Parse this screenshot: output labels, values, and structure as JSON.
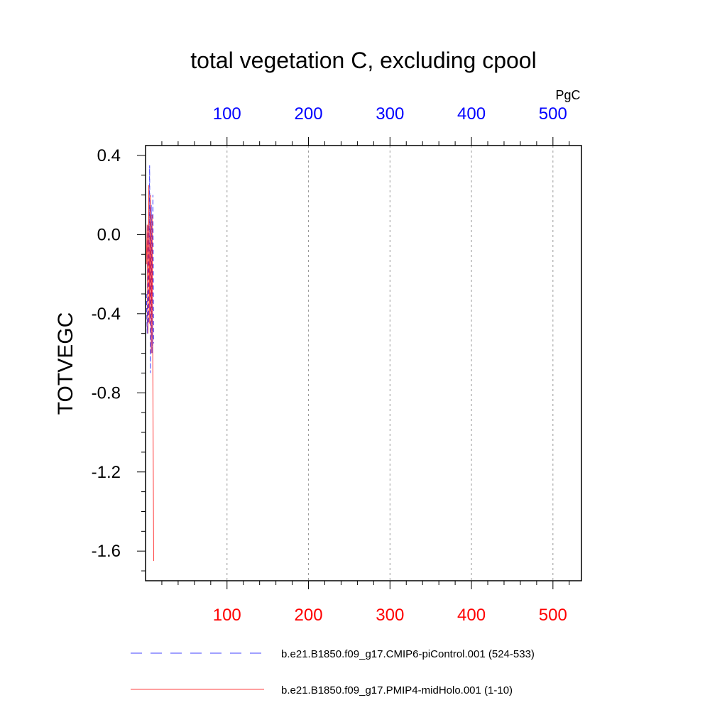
{
  "chart_data": {
    "type": "line",
    "title": "total vegetation C, excluding cpool",
    "ylabel": "TOTVEGC",
    "top_axis_unit": "PgC",
    "xlim": [
      0,
      535
    ],
    "ylim": [
      -1.75,
      0.45
    ],
    "x_ticks": [
      100,
      200,
      300,
      400,
      500
    ],
    "x_tick_labels": [
      "100",
      "200",
      "300",
      "400",
      "500"
    ],
    "y_ticks": [
      0.4,
      0.0,
      -0.4,
      -0.8,
      -1.2,
      -1.6
    ],
    "y_tick_labels": [
      "0.4",
      "0.0",
      "-0.4",
      "-0.8",
      "-1.2",
      "-1.6"
    ],
    "grid": "vertical dashed at major x ticks",
    "legend_position": "bottom",
    "series": [
      {
        "name": "b.e21.B1850.f09_g17.CMIP6-piControl.001 (524-533)",
        "color": "#0000ff",
        "dash": "dashed",
        "x": [
          1,
          2,
          3,
          4,
          5,
          6,
          7,
          8,
          9,
          10
        ],
        "y": [
          -0.3,
          -0.5,
          0.05,
          -0.45,
          0.35,
          -0.7,
          0.15,
          -0.6,
          0.2,
          -0.55
        ]
      },
      {
        "name": "b.e21.B1850.f09_g17.PMIP4-midHolo.001 (1-10)",
        "color": "#ff0000",
        "dash": "solid",
        "x": [
          1,
          2,
          3,
          4,
          5,
          6,
          7,
          8,
          9,
          10
        ],
        "y": [
          -0.15,
          0.05,
          -0.5,
          0.25,
          -0.45,
          0.2,
          -0.6,
          0.1,
          -0.75,
          -1.65
        ]
      }
    ]
  }
}
